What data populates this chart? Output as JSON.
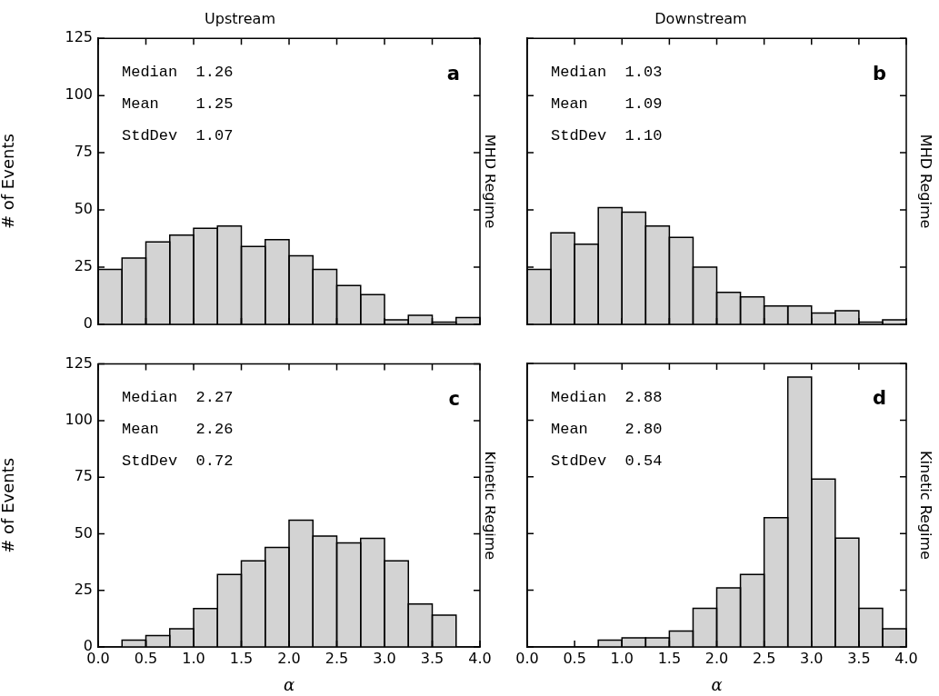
{
  "chart_data": [
    {
      "type": "histogram",
      "title": "Upstream",
      "ylabel": "# of Events",
      "y2label": "MHD Regime",
      "bins": [
        0,
        0.25,
        0.5,
        0.75,
        1,
        1.25,
        1.5,
        1.75,
        2,
        2.25,
        2.5,
        2.75,
        3,
        3.25,
        3.5,
        3.75,
        4
      ],
      "values": [
        24,
        29,
        36,
        39,
        42,
        43,
        34,
        37,
        30,
        24,
        17,
        13,
        2,
        4,
        1,
        3
      ],
      "color": "#d3d3d3",
      "xlim": [
        0,
        4
      ],
      "xticks": [
        {
          "value": 0,
          "label": null
        },
        {
          "value": 0.5,
          "label": null
        },
        {
          "value": 1,
          "label": null
        },
        {
          "value": 1.5,
          "label": null
        },
        {
          "value": 2,
          "label": null
        },
        {
          "value": 2.5,
          "label": null
        },
        {
          "value": 3,
          "label": null
        },
        {
          "value": 3.5,
          "label": null
        },
        {
          "value": 4,
          "label": null
        }
      ],
      "ylim": [
        0,
        125
      ],
      "yticks": [
        0,
        25,
        50,
        75,
        100,
        125
      ],
      "tick_labels": "y",
      "grid": false,
      "annotations": [
        "Median  1.26",
        "Mean    1.25",
        "StdDev  1.07",
        "a"
      ]
    },
    {
      "type": "histogram",
      "title": "Downstream",
      "y2label": "MHD Regime",
      "bins": [
        0,
        0.25,
        0.5,
        0.75,
        1,
        1.25,
        1.5,
        1.75,
        2,
        2.25,
        2.5,
        2.75,
        3,
        3.25,
        3.5,
        3.75,
        4
      ],
      "values": [
        24,
        40,
        35,
        51,
        49,
        43,
        38,
        25,
        14,
        12,
        8,
        8,
        5,
        6,
        1,
        2
      ],
      "color": "#d3d3d3",
      "xlim": [
        0,
        4
      ],
      "xticks": [
        {
          "value": 0,
          "label": null
        },
        {
          "value": 0.5,
          "label": null
        },
        {
          "value": 1,
          "label": null
        },
        {
          "value": 1.5,
          "label": null
        },
        {
          "value": 2,
          "label": null
        },
        {
          "value": 2.5,
          "label": null
        },
        {
          "value": 3,
          "label": null
        },
        {
          "value": 3.5,
          "label": null
        },
        {
          "value": 4,
          "label": null
        }
      ],
      "ylim": [
        0,
        125
      ],
      "yticks": [
        0,
        25,
        50,
        75,
        100,
        125
      ],
      "tick_labels": false,
      "grid": false,
      "annotations": [
        "Median  1.03",
        "Mean    1.09",
        "StdDev  1.10",
        "b"
      ]
    },
    {
      "type": "histogram",
      "xlabel": "α",
      "ylabel": "# of Events",
      "y2label": "Kinetic Regime",
      "bins": [
        0,
        0.25,
        0.5,
        0.75,
        1,
        1.25,
        1.5,
        1.75,
        2,
        2.25,
        2.5,
        2.75,
        3,
        3.25,
        3.5,
        3.75,
        4
      ],
      "values": [
        0,
        3,
        5,
        8,
        17,
        32,
        38,
        44,
        56,
        49,
        46,
        48,
        38,
        19,
        14,
        0
      ],
      "color": "#d3d3d3",
      "xlim": [
        0,
        4
      ],
      "xticks": [
        {
          "value": 0,
          "label": "0.0"
        },
        {
          "value": 0.5,
          "label": "0.5"
        },
        {
          "value": 1,
          "label": "1.0"
        },
        {
          "value": 1.5,
          "label": "1.5"
        },
        {
          "value": 2,
          "label": "2.0"
        },
        {
          "value": 2.5,
          "label": "2.5"
        },
        {
          "value": 3,
          "label": "3.0"
        },
        {
          "value": 3.5,
          "label": "3.5"
        },
        {
          "value": 4,
          "label": "4.0"
        }
      ],
      "ylim": [
        0,
        125
      ],
      "yticks": [
        0,
        25,
        50,
        75,
        100,
        125
      ],
      "grid": false,
      "annotations": [
        "Median  2.27",
        "Mean    2.26",
        "StdDev  0.72",
        "c"
      ]
    },
    {
      "type": "histogram",
      "xlabel": "α",
      "y2label": "Kinetic Regime",
      "bins": [
        0,
        0.25,
        0.5,
        0.75,
        1,
        1.25,
        1.5,
        1.75,
        2,
        2.25,
        2.5,
        2.75,
        3,
        3.25,
        3.5,
        3.75,
        4
      ],
      "values": [
        0,
        0,
        0,
        3,
        4,
        4,
        7,
        17,
        26,
        32,
        57,
        119,
        74,
        48,
        17,
        8
      ],
      "color": "#d3d3d3",
      "xlim": [
        0,
        4
      ],
      "xticks": [
        {
          "value": 0,
          "label": "0.0"
        },
        {
          "value": 0.5,
          "label": "0.5"
        },
        {
          "value": 1,
          "label": "1.0"
        },
        {
          "value": 1.5,
          "label": "1.5"
        },
        {
          "value": 2,
          "label": "2.0"
        },
        {
          "value": 2.5,
          "label": "2.5"
        },
        {
          "value": 3,
          "label": "3.0"
        },
        {
          "value": 3.5,
          "label": "3.5"
        },
        {
          "value": 4,
          "label": "4.0"
        }
      ],
      "ylim": [
        0,
        125
      ],
      "yticks": [
        0,
        25,
        50,
        75,
        100,
        125
      ],
      "tick_labels": "x",
      "grid": false,
      "annotations": [
        "Median  2.88",
        "Mean    2.80",
        "StdDev  0.54",
        "d"
      ]
    }
  ]
}
